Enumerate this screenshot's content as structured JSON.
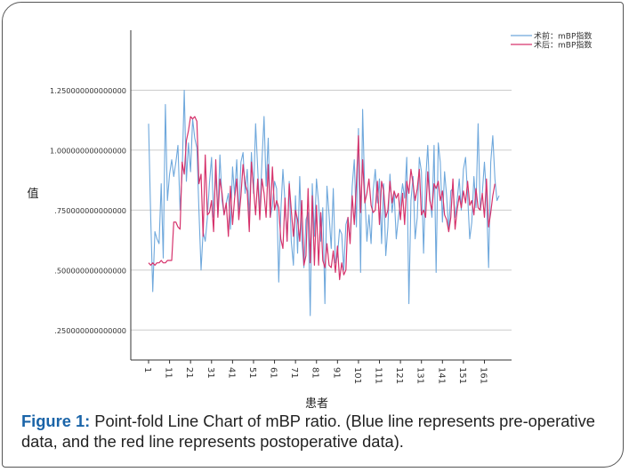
{
  "caption": {
    "label": "Figure 1:",
    "text": " Point-fold Line Chart of mBP ratio. (Blue line represents pre-operative data, and the red line represents postoperative data)."
  },
  "chart_data": {
    "type": "line",
    "xlabel": "患者",
    "ylabel": "值",
    "xlim": [
      1,
      166
    ],
    "ylim": [
      0.125,
      1.5
    ],
    "y_ticks": [
      0.25,
      0.5,
      0.75,
      1.0,
      1.25
    ],
    "y_tick_labels": [
      ".250000000000000",
      ".500000000000000",
      ".750000000000000",
      "1.000000000000000",
      "1.250000000000000"
    ],
    "x_ticks": [
      1,
      11,
      21,
      31,
      41,
      51,
      61,
      71,
      81,
      91,
      101,
      111,
      121,
      131,
      141,
      151,
      161
    ],
    "grid": "horizontal",
    "legend_position": "top-right",
    "colors": {
      "pre": "#6fa8dc",
      "post": "#d6336c",
      "grid": "#cccccc",
      "axis": "#333333"
    },
    "series": [
      {
        "name": "术前：mBP指数",
        "color": "#6fa8dc",
        "values": [
          1.11,
          0.72,
          0.41,
          0.66,
          0.63,
          0.61,
          0.86,
          0.55,
          1.19,
          0.79,
          0.9,
          0.96,
          0.89,
          0.95,
          1.02,
          0.75,
          0.9,
          1.25,
          0.87,
          1.03,
          0.91,
          1.13,
          1.05,
          1.01,
          0.75,
          0.5,
          0.66,
          0.62,
          0.72,
          0.86,
          0.97,
          0.72,
          0.91,
          0.73,
          0.98,
          0.79,
          0.73,
          0.78,
          0.82,
          0.67,
          0.93,
          0.81,
          0.96,
          0.72,
          0.95,
          0.99,
          0.82,
          0.92,
          0.72,
          0.99,
          0.82,
          1.11,
          0.92,
          0.74,
          0.95,
          1.14,
          0.85,
          1.05,
          0.72,
          0.77,
          0.87,
          0.84,
          0.45,
          0.74,
          0.92,
          0.78,
          0.62,
          0.87,
          0.62,
          0.52,
          0.81,
          0.57,
          0.89,
          0.63,
          0.51,
          0.71,
          0.74,
          0.31,
          0.86,
          0.64,
          0.88,
          0.78,
          0.62,
          0.76,
          0.36,
          0.85,
          0.73,
          0.59,
          0.84,
          0.53,
          0.56,
          0.67,
          0.65,
          0.5,
          0.69,
          0.72,
          0.62,
          0.85,
          0.96,
          0.68,
          1.09,
          0.49,
          1.17,
          0.82,
          0.62,
          0.73,
          0.61,
          0.83,
          0.92,
          0.78,
          0.88,
          0.61,
          0.86,
          0.56,
          0.68,
          0.9,
          0.74,
          0.82,
          0.63,
          0.72,
          0.78,
          0.86,
          0.8,
          0.97,
          0.36,
          0.79,
          0.89,
          0.63,
          0.72,
          0.97,
          0.91,
          0.57,
          0.87,
          1.02,
          0.81,
          0.72,
          1.02,
          0.49,
          1.03,
          0.95,
          0.7,
          0.91,
          0.81,
          0.66,
          0.83,
          0.84,
          0.72,
          0.79,
          0.88,
          0.75,
          0.92,
          0.97,
          0.81,
          0.63,
          0.7,
          0.89,
          0.76,
          1.11,
          0.75,
          0.82,
          0.95,
          0.81,
          0.51,
          0.95,
          1.06,
          0.88,
          0.79,
          0.81
        ]
      },
      {
        "name": "术后：mBP指数",
        "color": "#d6336c",
        "values": [
          0.53,
          0.52,
          0.53,
          0.52,
          0.53,
          0.53,
          0.54,
          0.53,
          0.53,
          0.54,
          0.54,
          0.54,
          0.7,
          0.7,
          0.68,
          0.67,
          0.95,
          0.9,
          1.04,
          1.08,
          1.14,
          1.13,
          1.14,
          1.12,
          0.86,
          0.9,
          0.64,
          0.98,
          0.73,
          0.74,
          0.79,
          0.66,
          0.96,
          0.72,
          0.88,
          0.82,
          0.73,
          0.78,
          0.64,
          0.85,
          0.69,
          0.8,
          0.88,
          0.71,
          0.81,
          0.94,
          0.86,
          0.83,
          0.66,
          0.95,
          0.84,
          0.73,
          0.88,
          0.71,
          0.88,
          0.82,
          0.72,
          0.94,
          0.72,
          0.93,
          0.75,
          0.79,
          0.76,
          0.63,
          0.59,
          0.8,
          0.62,
          0.86,
          0.75,
          0.64,
          0.75,
          0.71,
          0.62,
          0.79,
          0.52,
          0.56,
          0.84,
          0.53,
          0.81,
          0.52,
          0.77,
          0.52,
          0.74,
          0.54,
          0.51,
          0.61,
          0.52,
          0.51,
          0.58,
          0.49,
          0.6,
          0.46,
          0.53,
          0.48,
          0.5,
          0.72,
          0.61,
          0.81,
          0.69,
          0.86,
          1.06,
          0.74,
          0.96,
          0.78,
          0.82,
          0.88,
          0.77,
          0.74,
          0.75,
          0.87,
          0.69,
          0.87,
          0.83,
          0.72,
          0.75,
          0.87,
          0.78,
          0.83,
          0.8,
          0.82,
          0.71,
          0.82,
          0.69,
          0.87,
          0.82,
          0.92,
          0.86,
          0.79,
          0.84,
          0.92,
          0.73,
          0.75,
          0.72,
          0.91,
          0.79,
          0.75,
          0.86,
          0.84,
          0.87,
          0.79,
          0.83,
          0.73,
          0.71,
          0.66,
          0.72,
          0.88,
          0.67,
          0.75,
          0.81,
          0.76,
          0.83,
          0.78,
          0.87,
          0.77,
          0.79,
          0.73,
          0.84,
          0.76,
          0.75,
          0.82,
          0.72,
          0.88,
          0.68,
          0.74,
          0.81,
          0.86
        ]
      }
    ]
  }
}
